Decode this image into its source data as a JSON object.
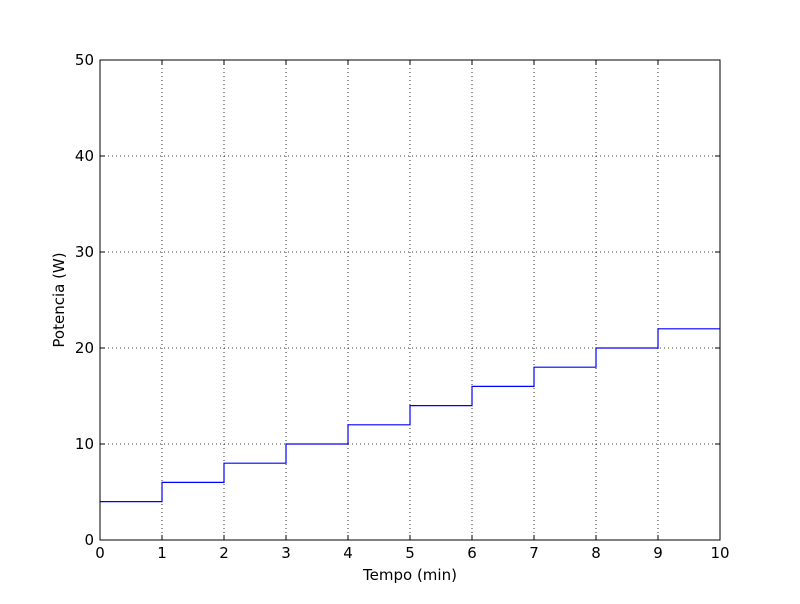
{
  "chart_data": {
    "type": "line",
    "step": "post",
    "title": "",
    "xlabel": "Tempo (min)",
    "ylabel": "Potencia (W)",
    "xlim": [
      0,
      10
    ],
    "ylim": [
      0,
      50
    ],
    "xticks": [
      "0",
      "1",
      "2",
      "3",
      "4",
      "5",
      "6",
      "7",
      "8",
      "9",
      "10"
    ],
    "yticks": [
      "0",
      "10",
      "20",
      "30",
      "40",
      "50"
    ],
    "grid": true,
    "legend": "none",
    "series": [
      {
        "color": "#0000ff",
        "x": [
          0,
          1,
          2,
          3,
          4,
          5,
          6,
          7,
          8,
          9,
          10
        ],
        "y": [
          4,
          6,
          8,
          10,
          12,
          14,
          16,
          18,
          20,
          22,
          22
        ]
      }
    ]
  }
}
